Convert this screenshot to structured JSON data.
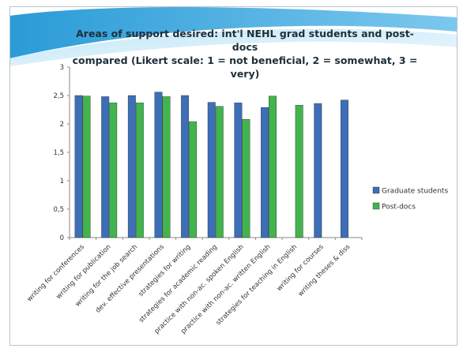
{
  "title": {
    "line1": "Areas of support desired: int'l NEHL grad students and post-docs",
    "line2": "compared (Likert scale: 1 = not beneficial, 2 = somewhat, 3 = very)"
  },
  "colors": {
    "series1": "#3d6fb8",
    "series2": "#42b44d",
    "banner_dark": "#2a9bd7",
    "banner_light": "#8fd1f2"
  },
  "chart_data": {
    "type": "bar",
    "title": "Areas of support desired: int'l NEHL grad students and post-docs compared (Likert scale: 1 = not beneficial, 2 = somewhat, 3 = very)",
    "categories": [
      "writing for conferences",
      "writing for publication",
      "writing for the job search",
      "dev. effective presentations",
      "strategies for writing",
      "strategies for academic reading",
      "practice with non-ac. spoken English",
      "practice with non-ac. written English",
      "strategies for teaching in English",
      "writing for courses",
      "writing theses & diss"
    ],
    "series": [
      {
        "name": "Graduate students",
        "values": [
          2.5,
          2.48,
          2.5,
          2.56,
          2.5,
          2.38,
          2.37,
          2.29,
          null,
          2.36,
          2.42
        ]
      },
      {
        "name": "Post-docs",
        "values": [
          2.49,
          2.37,
          2.37,
          2.48,
          2.04,
          2.31,
          2.08,
          2.49,
          2.33,
          null,
          null
        ]
      }
    ],
    "yticks": [
      "0",
      "0,5",
      "1",
      "1,5",
      "2",
      "2,5",
      "3"
    ],
    "ylim": [
      0,
      3
    ],
    "grid": false,
    "legend": "right"
  }
}
